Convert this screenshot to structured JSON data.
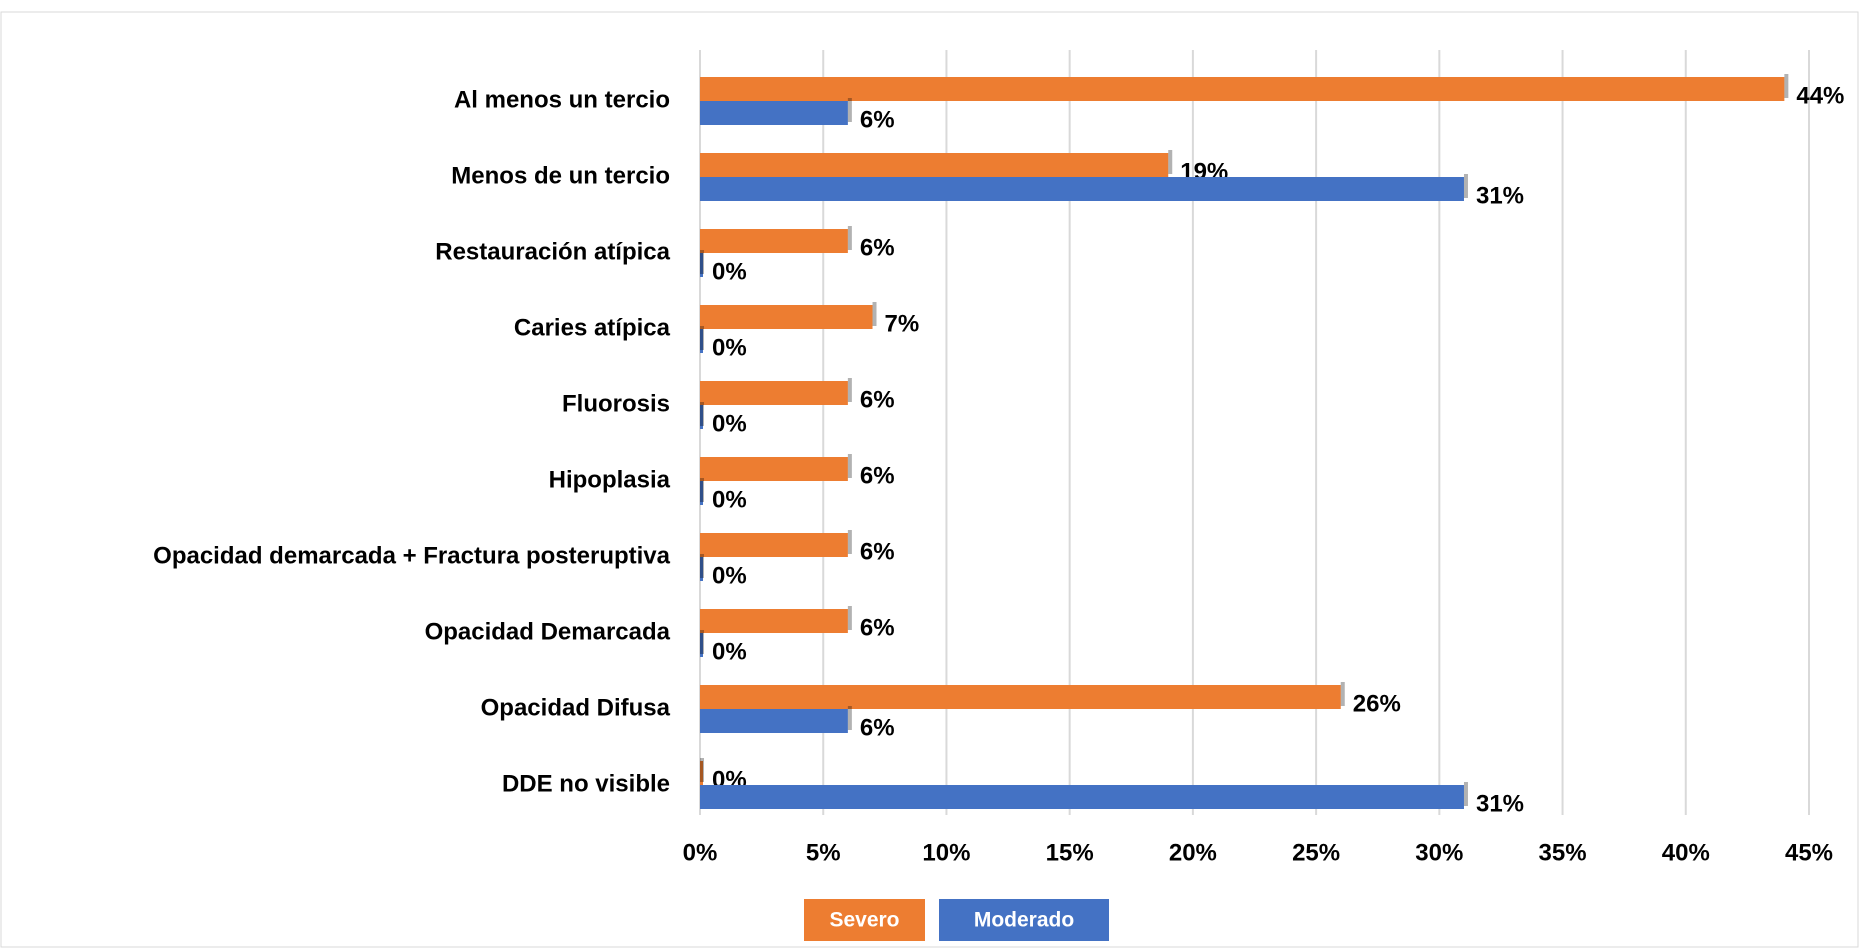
{
  "chart_data": {
    "type": "hbar",
    "categories": [
      "Al menos un tercio",
      "Menos de un tercio",
      "Restauración atípica",
      "Caries atípica",
      "Fluorosis",
      "Hipoplasia",
      "Opacidad demarcada + Fractura posteruptiva",
      "Opacidad Demarcada",
      "Opacidad Difusa",
      "DDE no visible"
    ],
    "series": [
      {
        "name": "Severo",
        "color": "#ed7d31",
        "values": [
          44,
          19,
          6,
          7,
          6,
          6,
          6,
          6,
          26,
          0
        ],
        "value_labels": [
          "44%",
          "19%",
          "6%",
          "7%",
          "6%",
          "6%",
          "6%",
          "6%",
          "26%",
          "0%"
        ]
      },
      {
        "name": "Moderado",
        "color": "#4472c4",
        "values": [
          6,
          31,
          0,
          0,
          0,
          0,
          0,
          0,
          6,
          31
        ],
        "value_labels": [
          "6%",
          "31%",
          "0%",
          "0%",
          "0%",
          "0%",
          "0%",
          "0%",
          "6%",
          "31%"
        ]
      }
    ],
    "xlim": [
      0,
      45
    ],
    "xticks": [
      {
        "value": 0,
        "label": "0%"
      },
      {
        "value": 5,
        "label": "5%"
      },
      {
        "value": 10,
        "label": "10%"
      },
      {
        "value": 15,
        "label": "15%"
      },
      {
        "value": 20,
        "label": "20%"
      },
      {
        "value": 25,
        "label": "25%"
      },
      {
        "value": 30,
        "label": "30%"
      },
      {
        "value": 35,
        "label": "35%"
      },
      {
        "value": 40,
        "label": "40%"
      },
      {
        "value": 45,
        "label": "45%"
      }
    ],
    "grid": true
  }
}
